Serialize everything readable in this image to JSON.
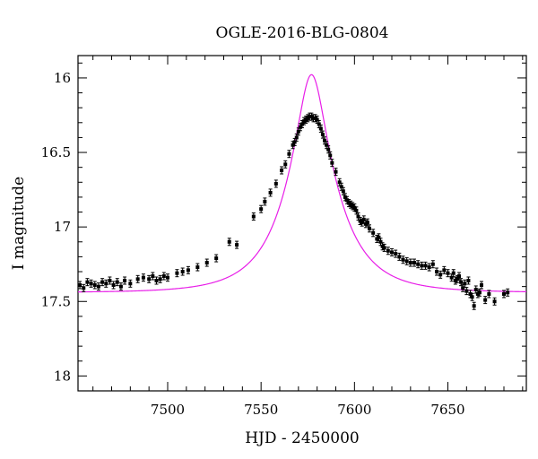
{
  "chart_data": {
    "type": "scatter",
    "title": "OGLE-2016-BLG-0804",
    "xlabel": "HJD - 2450000",
    "ylabel": "I magnitude",
    "xlim": [
      7452,
      7692
    ],
    "ylim": [
      18.1,
      15.85
    ],
    "y_inverted": true,
    "grid": false,
    "x_ticks": [
      7500,
      7550,
      7600,
      7650
    ],
    "y_ticks": [
      16,
      16.5,
      17,
      17.5,
      18
    ],
    "x_tick_labels": [
      "7500",
      "7550",
      "7600",
      "7650"
    ],
    "y_tick_labels": [
      "16",
      "16.5",
      "17",
      "17.5",
      "18"
    ],
    "model": {
      "color": "#e81ee8",
      "t0": 7577,
      "tE": 27,
      "u0": 0.267,
      "baseline_mag": 17.44
    },
    "series": [
      {
        "marker_color": "#000000",
        "x": [
          7453,
          7455,
          7457,
          7459,
          7461,
          7463,
          7465,
          7467,
          7469,
          7471,
          7473,
          7475,
          7477,
          7480,
          7484,
          7487,
          7490,
          7492,
          7494,
          7496,
          7498,
          7500,
          7505,
          7508,
          7511,
          7516,
          7521,
          7526,
          7533,
          7537,
          7546,
          7550,
          7552,
          7555,
          7558,
          7561,
          7563,
          7565,
          7567,
          7568,
          7569,
          7570,
          7571,
          7572,
          7573,
          7574,
          7575,
          7576,
          7577,
          7578,
          7579,
          7580,
          7581,
          7582,
          7583,
          7584,
          7585,
          7586,
          7587,
          7588,
          7590,
          7592,
          7593,
          7594,
          7595,
          7596,
          7597,
          7598,
          7599,
          7600,
          7601,
          7602,
          7603,
          7604,
          7605,
          7606,
          7607,
          7608,
          7610,
          7612,
          7613,
          7614,
          7615,
          7616,
          7618,
          7620,
          7622,
          7624,
          7626,
          7628,
          7630,
          7632,
          7634,
          7636,
          7638,
          7640,
          7642,
          7644,
          7646,
          7648,
          7650,
          7652,
          7653,
          7654,
          7655,
          7656,
          7657,
          7658,
          7659,
          7660,
          7661,
          7662,
          7663,
          7664,
          7665,
          7666,
          7667,
          7668,
          7670,
          7672,
          7675,
          7680,
          7682
        ],
        "y": [
          17.39,
          17.41,
          17.37,
          17.38,
          17.39,
          17.4,
          17.37,
          17.38,
          17.36,
          17.39,
          17.37,
          17.4,
          17.36,
          17.38,
          17.35,
          17.34,
          17.35,
          17.33,
          17.36,
          17.35,
          17.33,
          17.34,
          17.31,
          17.3,
          17.29,
          17.27,
          17.24,
          17.21,
          17.1,
          17.12,
          16.93,
          16.88,
          16.83,
          16.77,
          16.71,
          16.62,
          16.58,
          16.51,
          16.45,
          16.43,
          16.4,
          16.36,
          16.33,
          16.31,
          16.29,
          16.28,
          16.27,
          16.26,
          16.26,
          16.27,
          16.27,
          16.28,
          16.31,
          16.34,
          16.38,
          16.42,
          16.45,
          16.48,
          16.52,
          16.57,
          16.63,
          16.7,
          16.73,
          16.76,
          16.8,
          16.82,
          16.84,
          16.85,
          16.86,
          16.87,
          16.89,
          16.93,
          16.96,
          16.97,
          16.95,
          16.98,
          16.97,
          17.01,
          17.04,
          17.08,
          17.07,
          17.1,
          17.13,
          17.14,
          17.16,
          17.17,
          17.18,
          17.2,
          17.22,
          17.23,
          17.24,
          17.24,
          17.25,
          17.26,
          17.26,
          17.27,
          17.25,
          17.3,
          17.32,
          17.29,
          17.31,
          17.34,
          17.31,
          17.36,
          17.35,
          17.33,
          17.37,
          17.41,
          17.38,
          17.43,
          17.36,
          17.45,
          17.47,
          17.53,
          17.42,
          17.45,
          17.44,
          17.39,
          17.49,
          17.45,
          17.5,
          17.45,
          17.44
        ]
      }
    ]
  }
}
